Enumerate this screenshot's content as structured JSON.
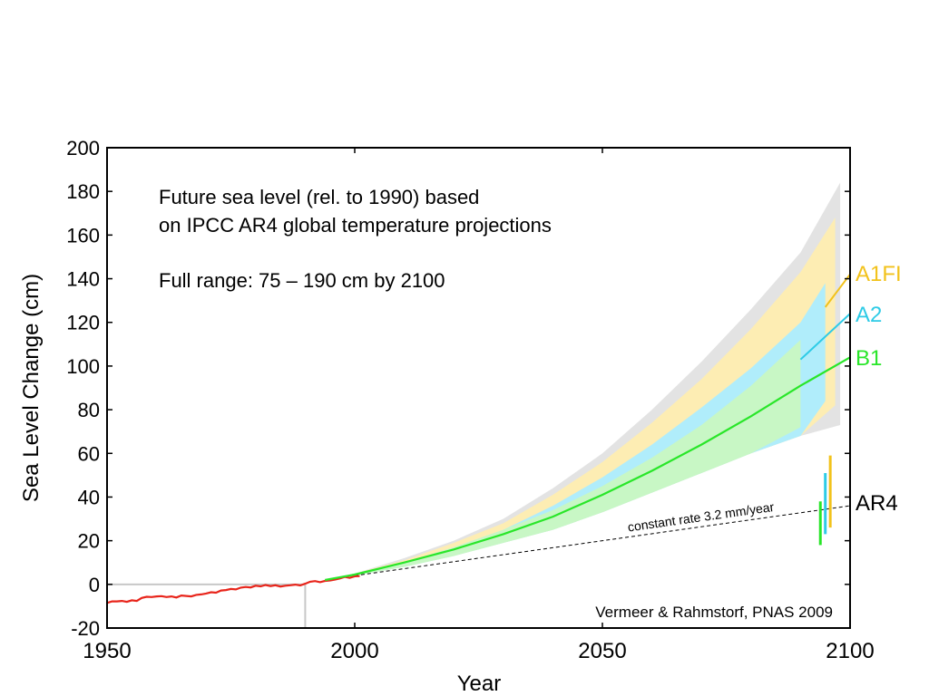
{
  "chart_data": {
    "type": "area",
    "xlabel": "Year",
    "ylabel": "Sea Level Change (cm)",
    "xlim": [
      1950,
      2100
    ],
    "ylim": [
      -20,
      200
    ],
    "xticks": [
      1950,
      2000,
      2050,
      2100
    ],
    "yticks": [
      -20,
      0,
      20,
      40,
      60,
      80,
      100,
      120,
      140,
      160,
      180,
      200
    ],
    "annotation_text": {
      "line1": "Future sea level (rel. to 1990) based",
      "line2": "on IPCC AR4 global temperature projections",
      "line3": "Full range: 75 – 190 cm by 2100"
    },
    "credit": "Vermeer & Rahmstorf, PNAS 2009",
    "reference_year": 1990,
    "colors": {
      "observed": "#e8251b",
      "full_range": "#e3e3e3",
      "A1FI": "#f2c21b",
      "A1FI_band": "#fdedb3",
      "A2": "#2ecbe6",
      "A2_band": "#b0edfb",
      "B1": "#29e629",
      "B1_band": "#c8f7c5",
      "constant_rate": "#000000",
      "AR4_label": "#000000"
    },
    "observed": {
      "x": [
        1950,
        1951,
        1952,
        1953,
        1954,
        1955,
        1956,
        1957,
        1958,
        1959,
        1960,
        1961,
        1962,
        1963,
        1964,
        1965,
        1966,
        1967,
        1968,
        1969,
        1970,
        1971,
        1972,
        1973,
        1974,
        1975,
        1976,
        1977,
        1978,
        1979,
        1980,
        1981,
        1982,
        1983,
        1984,
        1985,
        1986,
        1987,
        1988,
        1989,
        1990,
        1991,
        1992,
        1993,
        1994,
        1995,
        1996,
        1997,
        1998,
        1999,
        2000,
        2001
      ],
      "y": [
        -8.5,
        -7.8,
        -7.8,
        -7.6,
        -8.0,
        -7.3,
        -7.6,
        -6.2,
        -5.7,
        -5.8,
        -5.5,
        -5.4,
        -5.8,
        -5.5,
        -6.0,
        -5.1,
        -5.3,
        -5.5,
        -4.8,
        -4.6,
        -4.2,
        -3.6,
        -3.8,
        -2.8,
        -2.6,
        -2.1,
        -2.3,
        -1.5,
        -1.2,
        -1.4,
        -0.6,
        -0.9,
        -0.3,
        -0.8,
        -0.4,
        -1.0,
        -0.6,
        -0.4,
        -0.1,
        -0.5,
        0.3,
        1.2,
        1.5,
        1.0,
        1.6,
        1.8,
        2.2,
        2.7,
        3.4,
        3.0,
        3.7,
        3.8
      ]
    },
    "series": [
      {
        "name": "A1FI",
        "x": [
          2095,
          2100
        ],
        "y": [
          127,
          142
        ]
      },
      {
        "name": "A2",
        "x": [
          2090,
          2100
        ],
        "y": [
          103,
          124
        ]
      },
      {
        "name": "B1",
        "x": [
          1994,
          2000,
          2010,
          2020,
          2030,
          2040,
          2050,
          2060,
          2070,
          2080,
          2090,
          2100
        ],
        "y": [
          2,
          4.5,
          10,
          16,
          23,
          31,
          41,
          52,
          64,
          77,
          91,
          104
        ]
      }
    ],
    "bands": {
      "full_range": {
        "x": [
          1994,
          2000,
          2010,
          2020,
          2030,
          2040,
          2050,
          2060,
          2070,
          2080,
          2090,
          2098
        ],
        "upper": [
          2,
          5,
          12,
          20,
          30,
          44,
          60,
          80,
          102,
          126,
          152,
          184
        ],
        "lower": [
          2,
          4,
          8,
          13,
          19,
          25,
          33,
          42,
          51,
          60,
          68,
          73
        ]
      },
      "A1FI": {
        "x": [
          1994,
          2000,
          2010,
          2020,
          2030,
          2040,
          2050,
          2060,
          2070,
          2080,
          2090,
          2097
        ],
        "upper": [
          2,
          5,
          11,
          19,
          28,
          41,
          56,
          74,
          94,
          117,
          143,
          168
        ],
        "lower": [
          2,
          4,
          8,
          13,
          19,
          25,
          33,
          42,
          51,
          60,
          68,
          82
        ]
      },
      "A2": {
        "x": [
          1994,
          2000,
          2010,
          2020,
          2030,
          2040,
          2050,
          2060,
          2070,
          2080,
          2090,
          2095
        ],
        "upper": [
          2,
          5,
          10,
          17,
          25,
          36,
          49,
          64,
          81,
          99,
          120,
          138
        ],
        "lower": [
          2,
          4,
          8,
          13,
          19,
          25,
          33,
          42,
          51,
          60,
          68,
          84
        ]
      },
      "B1": {
        "x": [
          1994,
          2000,
          2010,
          2020,
          2030,
          2040,
          2050,
          2060,
          2070,
          2080,
          2090
        ],
        "upper": [
          2,
          5,
          10,
          17,
          25,
          34,
          45,
          58,
          73,
          91,
          112
        ],
        "lower": [
          2,
          4,
          8,
          13,
          19,
          25,
          33,
          42,
          51,
          60,
          72
        ]
      }
    },
    "constant_rate": {
      "label": "constant rate 3.2 mm/year",
      "x": [
        2000,
        2100
      ],
      "y": [
        4.0,
        36.0
      ]
    },
    "ar4_bars": [
      {
        "name": "B1",
        "x": 2094,
        "low": 18,
        "high": 38
      },
      {
        "name": "A2",
        "x": 2095,
        "low": 23,
        "high": 51
      },
      {
        "name": "A1FI",
        "x": 2096,
        "low": 26,
        "high": 59
      }
    ],
    "end_labels": {
      "A1FI": "A1FI",
      "A2": "A2",
      "B1": "B1",
      "AR4": "AR4"
    }
  }
}
